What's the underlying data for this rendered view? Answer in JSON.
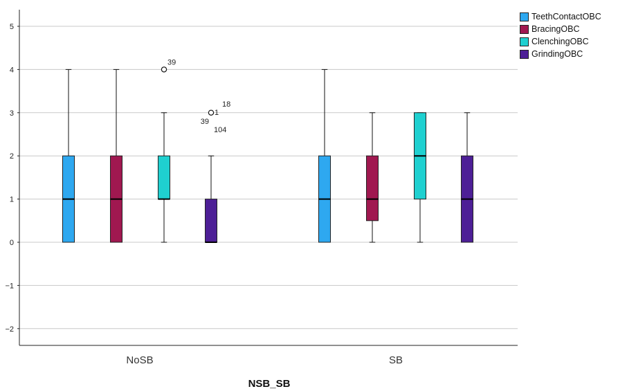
{
  "chart_data": {
    "type": "boxplot",
    "xlabel": "NSB_SB",
    "ylabel": "",
    "ylim": [
      -2.4,
      5.4
    ],
    "yticks": [
      -2,
      -1,
      0,
      1,
      2,
      3,
      4,
      5
    ],
    "grid": "horizontal",
    "legend_position": "top-right",
    "categories": [
      "NoSB",
      "SB"
    ],
    "series": [
      {
        "name": "TeethContactOBC",
        "color": "#2ea8f0",
        "boxes": [
          {
            "min": 0,
            "q1": 0,
            "median": 1,
            "q3": 2,
            "max": 4,
            "outliers": []
          },
          {
            "min": 0,
            "q1": 0,
            "median": 1,
            "q3": 2,
            "max": 4,
            "outliers": []
          }
        ]
      },
      {
        "name": "BracingOBC",
        "color": "#a01850",
        "boxes": [
          {
            "min": 0,
            "q1": 0,
            "median": 1,
            "q3": 2,
            "max": 4,
            "outliers": []
          },
          {
            "min": 0,
            "q1": 0.5,
            "median": 1,
            "q3": 2,
            "max": 3,
            "outliers": []
          }
        ]
      },
      {
        "name": "ClenchingOBC",
        "color": "#1fd0d0",
        "boxes": [
          {
            "min": 0,
            "q1": 1,
            "median": 1,
            "q3": 2,
            "max": 3,
            "outliers": [
              {
                "value": 4,
                "labels": [
                  "39"
                ]
              }
            ]
          },
          {
            "min": 0,
            "q1": 1,
            "median": 2,
            "q3": 3,
            "max": 3,
            "outliers": []
          }
        ]
      },
      {
        "name": "GrindingOBC",
        "color": "#4d1f96",
        "boxes": [
          {
            "min": 0,
            "q1": 0,
            "median": 0,
            "q3": 1,
            "max": 2,
            "outliers": [
              {
                "value": 3,
                "labels": [
                  "18",
                  "1",
                  "39",
                  "104"
                ]
              }
            ]
          },
          {
            "min": 0,
            "q1": 0,
            "median": 1,
            "q3": 2,
            "max": 3,
            "outliers": []
          }
        ]
      }
    ]
  }
}
